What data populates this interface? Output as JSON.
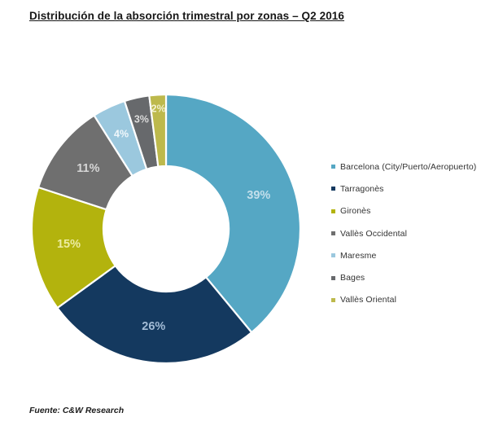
{
  "title": "Distribución de la absorción trimestral por zonas – Q2 2016",
  "source": "Fuente: C&W Research",
  "chart_data": {
    "type": "pie",
    "donut": true,
    "title": "Distribución de la absorción trimestral por zonas – Q2 2016",
    "units": "percent",
    "start_angle_deg": 0,
    "direction": "clockwise",
    "legend_position": "right",
    "slices": [
      {
        "name": "Barcelona (City/Puerto/Aeropuerto)",
        "value_pct": 39,
        "label": "39%",
        "color": "#55A7C4",
        "label_color": "#C3DFEB"
      },
      {
        "name": "Tarragonès",
        "value_pct": 26,
        "label": "26%",
        "color": "#14395F",
        "label_color": "#A3BCD6"
      },
      {
        "name": "Gironès",
        "value_pct": 15,
        "label": "15%",
        "color": "#B3B30D",
        "label_color": "#ECECA2"
      },
      {
        "name": "Vallès Occidental",
        "value_pct": 11,
        "label": "11%",
        "color": "#6F6F6F",
        "label_color": "#D6D6D6"
      },
      {
        "name": "Maresme",
        "value_pct": 4,
        "label": "4%",
        "color": "#9BC8DE",
        "label_color": "#F0F7FB"
      },
      {
        "name": "Bages",
        "value_pct": 3,
        "label": "3%",
        "color": "#67696C",
        "label_color": "#DBDBDB"
      },
      {
        "name": "Vallès Oriental",
        "value_pct": 2,
        "label": "2%",
        "color": "#BDB94C",
        "label_color": "#F2F1D0"
      }
    ],
    "label_radii": [
      121,
      121,
      121,
      121,
      129,
      138,
      148
    ]
  }
}
